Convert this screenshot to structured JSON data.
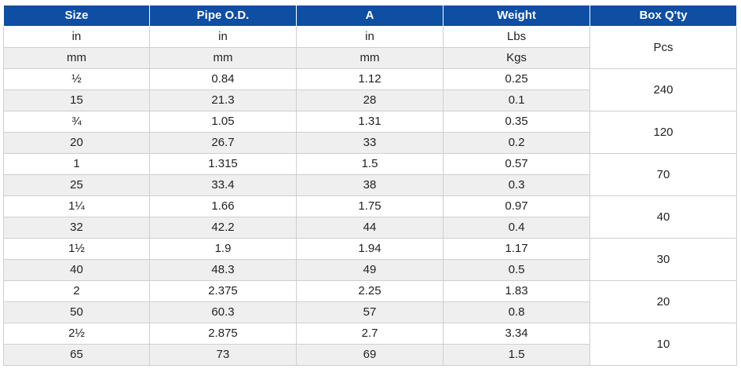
{
  "headers": [
    "Size",
    "Pipe O.D.",
    "A",
    "Weight",
    "Box Q'ty"
  ],
  "units": {
    "in": [
      "in",
      "in",
      "in",
      "Lbs"
    ],
    "mm": [
      "mm",
      "mm",
      "mm",
      "Kgs"
    ],
    "box": "Pcs"
  },
  "rows": [
    {
      "in": [
        "½",
        "0.84",
        "1.12",
        "0.25"
      ],
      "mm": [
        "15",
        "21.3",
        "28",
        "0.1"
      ],
      "box": "240"
    },
    {
      "in": [
        "¾",
        "1.05",
        "1.31",
        "0.35"
      ],
      "mm": [
        "20",
        "26.7",
        "33",
        "0.2"
      ],
      "box": "120"
    },
    {
      "in": [
        "1",
        "1.315",
        "1.5",
        "0.57"
      ],
      "mm": [
        "25",
        "33.4",
        "38",
        "0.3"
      ],
      "box": "70"
    },
    {
      "in": [
        "1¼",
        "1.66",
        "1.75",
        "0.97"
      ],
      "mm": [
        "32",
        "42.2",
        "44",
        "0.4"
      ],
      "box": "40"
    },
    {
      "in": [
        "1½",
        "1.9",
        "1.94",
        "1.17"
      ],
      "mm": [
        "40",
        "48.3",
        "49",
        "0.5"
      ],
      "box": "30"
    },
    {
      "in": [
        "2",
        "2.375",
        "2.25",
        "1.83"
      ],
      "mm": [
        "50",
        "60.3",
        "57",
        "0.8"
      ],
      "box": "20"
    },
    {
      "in": [
        "2½",
        "2.875",
        "2.7",
        "3.34"
      ],
      "mm": [
        "65",
        "73",
        "69",
        "1.5"
      ],
      "box": "10"
    }
  ]
}
